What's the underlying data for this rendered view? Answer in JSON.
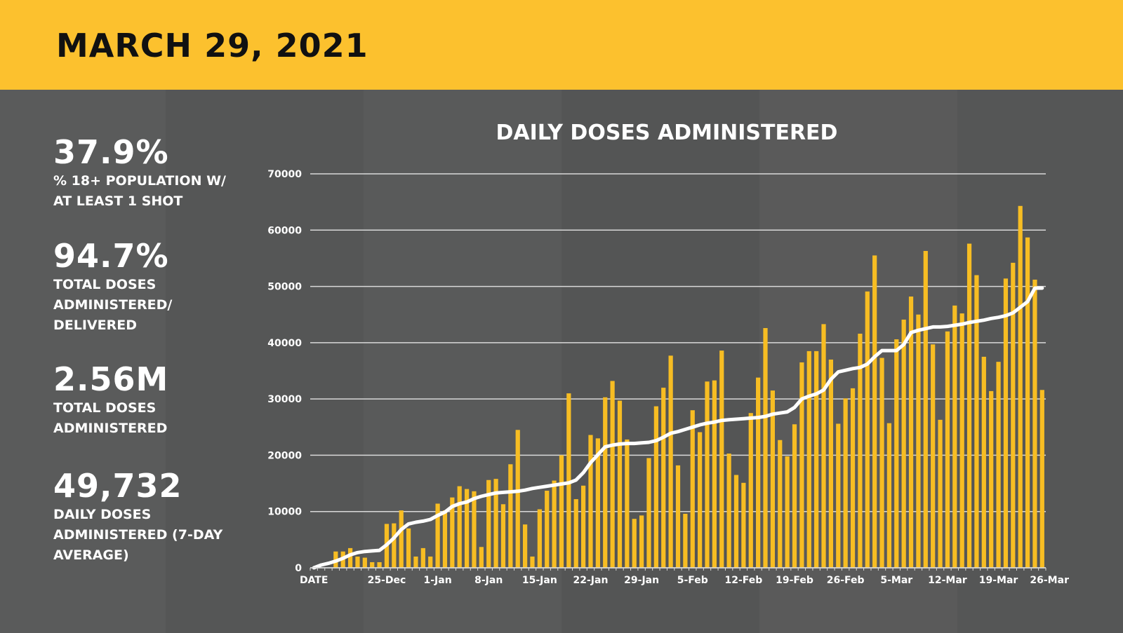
{
  "header": {
    "title": "MARCH 29, 2021"
  },
  "stats": [
    {
      "value": "37.9%",
      "label": "% 18+ POPULATION W/ AT LEAST 1 SHOT"
    },
    {
      "value": "94.7%",
      "label": "TOTAL DOSES ADMINISTERED/ DELIVERED"
    },
    {
      "value": "2.56M",
      "label": "TOTAL DOSES ADMINISTERED"
    },
    {
      "value": "49,732",
      "label": "DAILY DOSES ADMINISTERED (7-DAY AVERAGE)"
    }
  ],
  "colors": {
    "header": "#fcc12e",
    "bar": "#f7bd23",
    "line": "#ffffff",
    "background": "#555656"
  },
  "chart_data": {
    "type": "bar",
    "title": "DAILY DOSES ADMINISTERED",
    "xlabel": "",
    "ylabel": "",
    "ylim": [
      0,
      70000
    ],
    "y_ticks": [
      0,
      10000,
      20000,
      30000,
      40000,
      50000,
      60000,
      70000
    ],
    "x_tick_labels": [
      "DATE",
      "25-Dec",
      "1-Jan",
      "8-Jan",
      "15-Jan",
      "22-Jan",
      "29-Jan",
      "5-Feb",
      "12-Feb",
      "19-Feb",
      "26-Feb",
      "5-Mar",
      "12-Mar",
      "19-Mar",
      "26-Mar"
    ],
    "grid": true,
    "legend": "none",
    "series": [
      {
        "type": "bar",
        "values": [
          0,
          0,
          0,
          2900,
          2900,
          3500,
          2000,
          1800,
          1000,
          1000,
          7800,
          7900,
          10200,
          7000,
          2000,
          3500,
          2000,
          11400,
          10200,
          12500,
          14500,
          14000,
          13600,
          3700,
          15600,
          15800,
          11300,
          18400,
          24500,
          7700,
          2000,
          10400,
          13700,
          15500,
          20000,
          31000,
          12200,
          14600,
          23600,
          23000,
          30300,
          33200,
          29700,
          22800,
          8700,
          9300,
          19500,
          28700,
          32000,
          37700,
          18200,
          9600,
          28000,
          24100,
          33100,
          33300,
          38600,
          20300,
          16500,
          15100,
          27500,
          33800,
          42600,
          31500,
          22700,
          19800,
          25500,
          36500,
          38500,
          38500,
          43300,
          37000,
          25600,
          30100,
          31900,
          41600,
          49100,
          55500,
          37300,
          25700,
          40600,
          44100,
          48200,
          45000,
          56300,
          39700,
          26300,
          42000,
          46600,
          45200,
          57600,
          52000,
          37500,
          31400,
          36600,
          51400,
          54200,
          64300,
          58700,
          51200,
          31600
        ]
      },
      {
        "type": "line",
        "values": [
          0,
          500,
          800,
          1200,
          1700,
          2300,
          2700,
          2900,
          3000,
          3100,
          4100,
          5300,
          6800,
          7800,
          8100,
          8300,
          8600,
          9300,
          9900,
          10900,
          11400,
          11700,
          12300,
          12700,
          13000,
          13300,
          13400,
          13500,
          13600,
          13800,
          14100,
          14300,
          14500,
          14700,
          14900,
          15100,
          15600,
          16900,
          18700,
          20100,
          21500,
          21800,
          22000,
          22100,
          22100,
          22200,
          22300,
          22600,
          23200,
          23900,
          24200,
          24600,
          25000,
          25400,
          25700,
          25900,
          26200,
          26300,
          26400,
          26500,
          26600,
          26700,
          26900,
          27300,
          27500,
          27700,
          28500,
          30000,
          30500,
          30900,
          31600,
          33500,
          34800,
          35100,
          35400,
          35600,
          36200,
          37500,
          38600,
          38600,
          38600,
          39700,
          41800,
          42200,
          42500,
          42800,
          42800,
          42900,
          43100,
          43300,
          43600,
          43800,
          44000,
          44300,
          44500,
          44800,
          45300,
          46300,
          47300,
          49700,
          49700
        ]
      }
    ]
  }
}
